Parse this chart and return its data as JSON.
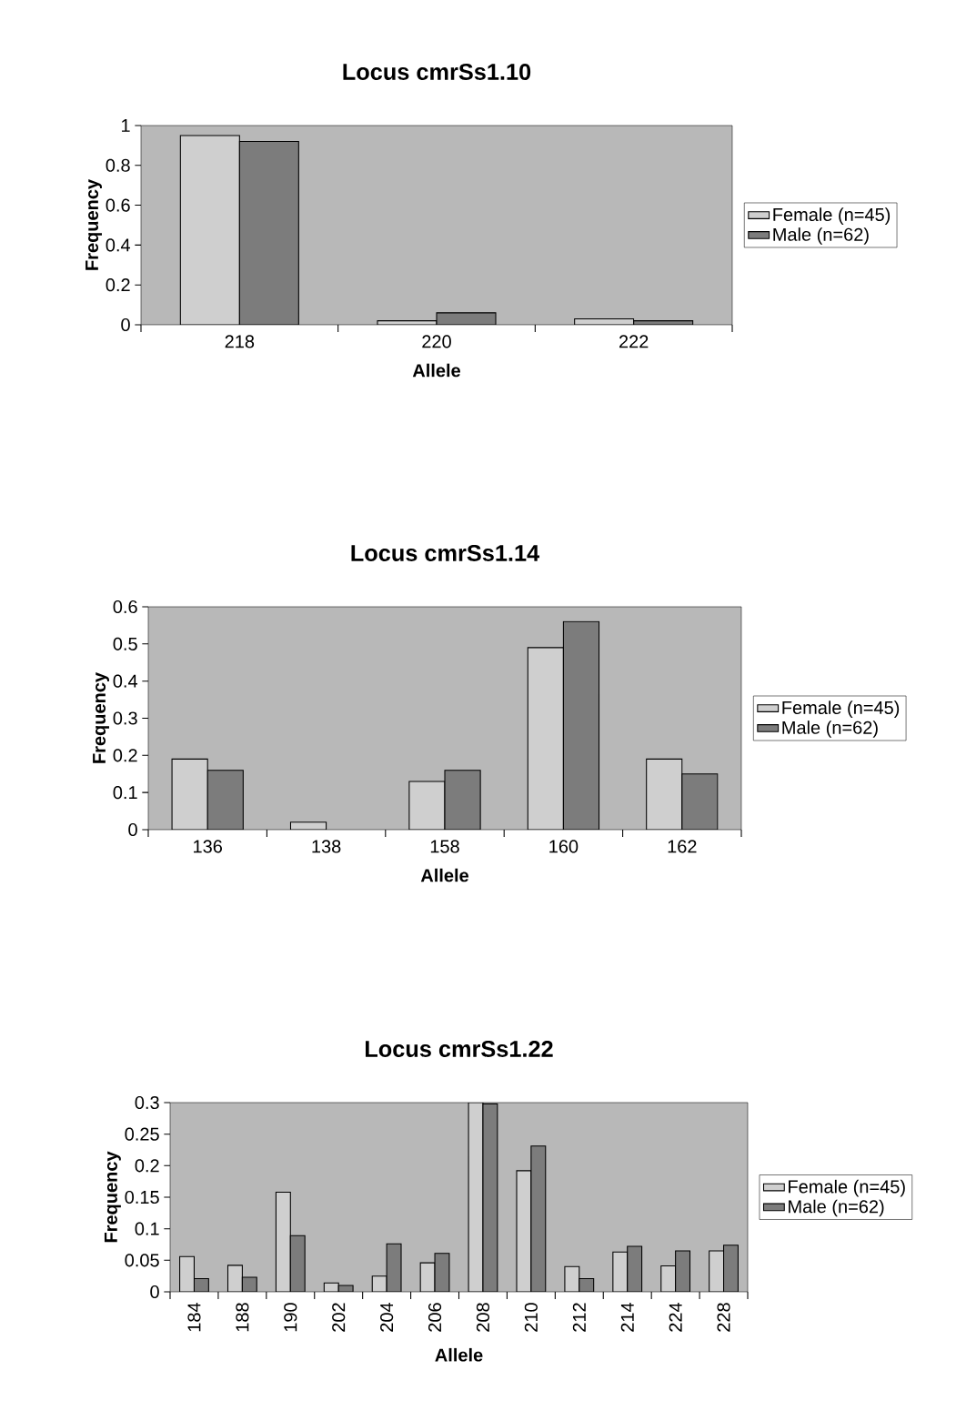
{
  "chart_data": [
    {
      "type": "bar",
      "title": "Locus   cmrSs1.10",
      "xlabel": "Allele",
      "ylabel": "Frequency",
      "categories": [
        "218",
        "220",
        "222"
      ],
      "series": [
        {
          "name": "Female  (n=45)",
          "color": "#cfcfcf",
          "values": [
            0.95,
            0.02,
            0.03
          ]
        },
        {
          "name": "Male  (n=62)",
          "color": "#7c7c7c",
          "values": [
            0.92,
            0.06,
            0.02
          ]
        }
      ],
      "ylim": [
        0,
        1
      ],
      "yticks": [
        0,
        0.2,
        0.4,
        0.6,
        0.8,
        1
      ],
      "legend": "right",
      "grid": false
    },
    {
      "type": "bar",
      "title": "Locus   cmrSs1.14",
      "xlabel": "Allele",
      "ylabel": "Frequency",
      "categories": [
        "136",
        "138",
        "158",
        "160",
        "162"
      ],
      "series": [
        {
          "name": "Female  (n=45)",
          "color": "#cfcfcf",
          "values": [
            0.19,
            0.02,
            0.13,
            0.49,
            0.19
          ]
        },
        {
          "name": "Male  (n=62)",
          "color": "#7c7c7c",
          "values": [
            0.16,
            null,
            0.16,
            0.56,
            0.15
          ]
        }
      ],
      "ylim": [
        0,
        0.6
      ],
      "yticks": [
        0,
        0.1,
        0.2,
        0.3,
        0.4,
        0.5,
        0.6
      ],
      "legend": "right",
      "grid": false
    },
    {
      "type": "bar",
      "title": "Locus   cmrSs1.22",
      "xlabel": "Allele",
      "ylabel": "Frequency",
      "categories": [
        "184",
        "188",
        "190",
        "202",
        "204",
        "206",
        "208",
        "210",
        "212",
        "214",
        "224",
        "228"
      ],
      "series": [
        {
          "name": "Female  (n=45)",
          "color": "#cfcfcf",
          "values": [
            0.056,
            0.042,
            0.158,
            0.014,
            0.025,
            0.046,
            0.3,
            0.192,
            0.04,
            0.063,
            0.041,
            0.065
          ]
        },
        {
          "name": "Male  (n=62)",
          "color": "#7c7c7c",
          "values": [
            0.021,
            0.023,
            0.089,
            0.01,
            0.076,
            0.061,
            0.298,
            0.231,
            0.021,
            0.072,
            0.065,
            0.074
          ]
        }
      ],
      "ylim": [
        0,
        0.3
      ],
      "yticks": [
        0,
        0.05,
        0.1,
        0.15,
        0.2,
        0.25,
        0.3
      ],
      "legend": "right",
      "grid": false
    }
  ]
}
